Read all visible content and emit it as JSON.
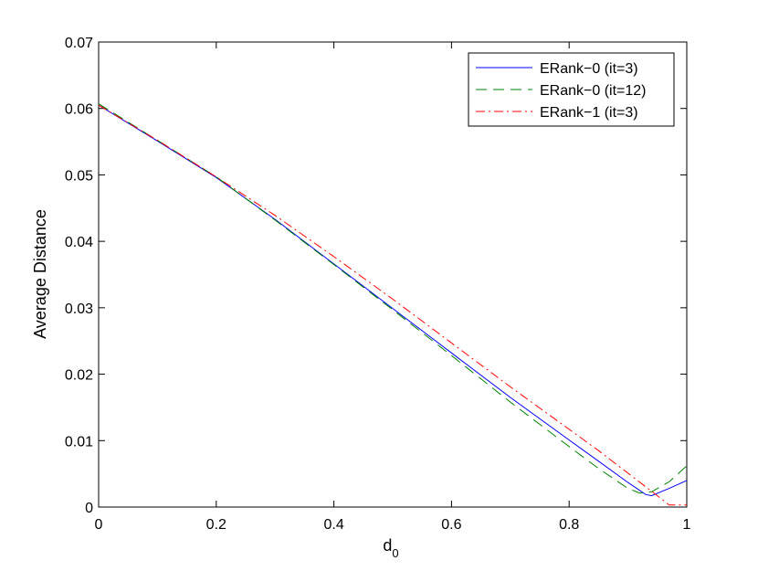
{
  "chart_data": {
    "type": "line",
    "title": "",
    "xlabel": "d",
    "xlabel_subscript": "0",
    "ylabel": "Average Distance",
    "xlim": [
      0,
      1
    ],
    "ylim": [
      0,
      0.07
    ],
    "xticks": [
      0,
      0.2,
      0.4,
      0.6,
      0.8,
      1
    ],
    "xtick_labels": [
      "0",
      "0.2",
      "0.4",
      "0.6",
      "0.8",
      "1"
    ],
    "yticks": [
      0,
      0.01,
      0.02,
      0.03,
      0.04,
      0.05,
      0.06,
      0.07
    ],
    "ytick_labels": [
      "0",
      "0.01",
      "0.02",
      "0.03",
      "0.04",
      "0.05",
      "0.06",
      "0.07"
    ],
    "grid": false,
    "legend_position": "top-right",
    "series": [
      {
        "name": "ERank−0 (it=3)",
        "color": "#0000ff",
        "style": "solid",
        "x": [
          0,
          0.1,
          0.2,
          0.3,
          0.4,
          0.5,
          0.6,
          0.7,
          0.8,
          0.85,
          0.9,
          0.93,
          0.94,
          0.97,
          1.0
        ],
        "y": [
          0.0605,
          0.0551,
          0.0496,
          0.0433,
          0.0366,
          0.0299,
          0.0232,
          0.0165,
          0.0101,
          0.0069,
          0.0037,
          0.0019,
          0.0017,
          0.0028,
          0.004
        ]
      },
      {
        "name": "ERank−0 (it=12)",
        "color": "#008000",
        "style": "dashed",
        "x": [
          0,
          0.1,
          0.2,
          0.3,
          0.4,
          0.5,
          0.6,
          0.7,
          0.8,
          0.85,
          0.9,
          0.92,
          0.94,
          0.97,
          1.0
        ],
        "y": [
          0.0607,
          0.0552,
          0.0497,
          0.0432,
          0.0365,
          0.0297,
          0.0228,
          0.0158,
          0.0091,
          0.0058,
          0.0028,
          0.0021,
          0.0023,
          0.0038,
          0.0062
        ]
      },
      {
        "name": "ERank−1 (it=3)",
        "color": "#ff0000",
        "style": "dashdot",
        "x": [
          0,
          0.1,
          0.2,
          0.3,
          0.4,
          0.5,
          0.6,
          0.7,
          0.8,
          0.85,
          0.9,
          0.95,
          0.97,
          1.0
        ],
        "y": [
          0.0605,
          0.0552,
          0.0497,
          0.0439,
          0.0377,
          0.0313,
          0.0247,
          0.0181,
          0.0117,
          0.0085,
          0.0051,
          0.0017,
          0.0003,
          0.0003
        ]
      }
    ]
  }
}
